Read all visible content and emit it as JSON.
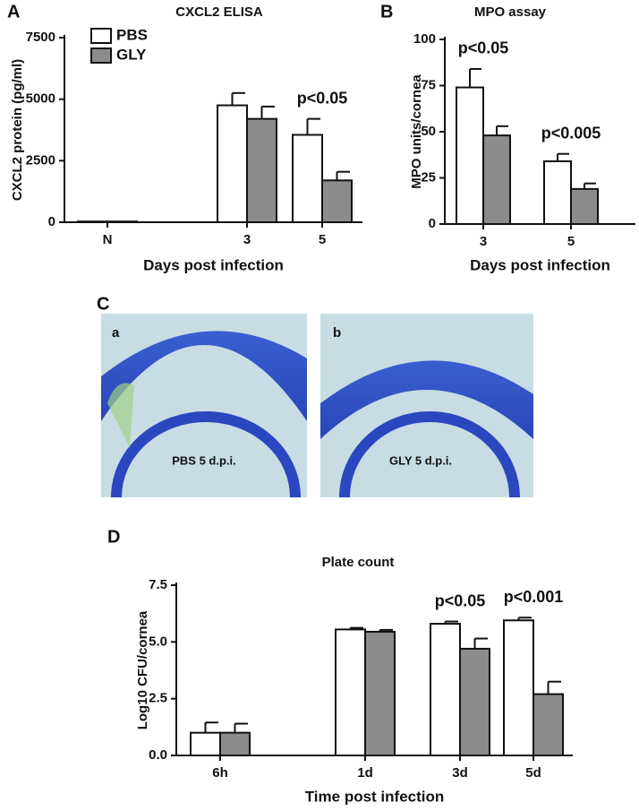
{
  "chart_data": [
    {
      "type": "bar",
      "panel": "A",
      "title": "CXCL2 ELISA",
      "x_label": "Days post infection",
      "y_label": "CXCL2 protein (pg/ml)",
      "categories": [
        "N",
        "3",
        "5"
      ],
      "series": [
        {
          "name": "PBS",
          "color": "#ffffff",
          "values": [
            30,
            4750,
            3550
          ],
          "errors": [
            0,
            500,
            650
          ]
        },
        {
          "name": "GLY",
          "color": "#8c8c8c",
          "values": [
            30,
            4200,
            1700
          ],
          "errors": [
            0,
            500,
            350
          ]
        }
      ],
      "ylim": [
        0,
        7500
      ],
      "yticks": [
        0,
        2500,
        5000,
        7500
      ],
      "annotations": [
        {
          "text": "p<0.05",
          "category": "5"
        }
      ]
    },
    {
      "type": "bar",
      "panel": "B",
      "title": "MPO assay",
      "x_label": "Days post infection",
      "y_label": "MPO units/cornea",
      "categories": [
        "3",
        "5"
      ],
      "series": [
        {
          "name": "PBS",
          "color": "#ffffff",
          "values": [
            74,
            34
          ],
          "errors": [
            10,
            4
          ]
        },
        {
          "name": "GLY",
          "color": "#8c8c8c",
          "values": [
            48,
            19
          ],
          "errors": [
            5,
            3
          ]
        }
      ],
      "ylim": [
        0,
        100
      ],
      "yticks": [
        0,
        25,
        50,
        75,
        100
      ],
      "annotations": [
        {
          "text": "p<0.05",
          "category": "3"
        },
        {
          "text": "p<0.005",
          "category": "5"
        }
      ]
    },
    {
      "type": "bar",
      "panel": "D",
      "title": "Plate count",
      "x_label": "Time post infection",
      "y_label": "Log10 CFU/cornea",
      "categories": [
        "6h",
        "1d",
        "3d",
        "5d"
      ],
      "series": [
        {
          "name": "PBS",
          "color": "#ffffff",
          "values": [
            1.0,
            5.55,
            5.8,
            5.95
          ],
          "errors": [
            0.45,
            0.07,
            0.1,
            0.12
          ]
        },
        {
          "name": "GLY",
          "color": "#8c8c8c",
          "values": [
            1.0,
            5.45,
            4.7,
            2.7
          ],
          "errors": [
            0.4,
            0.08,
            0.45,
            0.55
          ]
        }
      ],
      "ylim": [
        0,
        7.5
      ],
      "yticks": [
        {
          "value": 0,
          "label": "0.0"
        },
        2.5,
        {
          "value": 5,
          "label": "5.0"
        },
        7.5
      ],
      "annotations": [
        {
          "text": "p<0.05",
          "category": "3d"
        },
        {
          "text": "p<0.001",
          "category": "5d"
        }
      ]
    }
  ],
  "images": {
    "panel": "C",
    "items": [
      {
        "letter": "a",
        "caption": "PBS 5 d.p.i."
      },
      {
        "letter": "b",
        "caption": "GLY 5 d.p.i."
      }
    ]
  }
}
